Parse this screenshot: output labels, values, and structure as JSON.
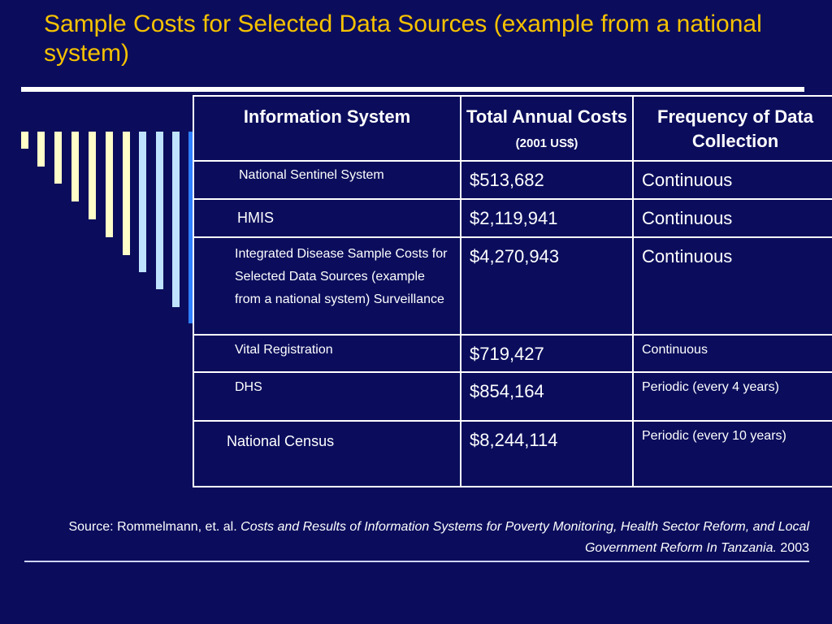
{
  "title": "Sample Costs for Selected Data Sources (example from a national system)",
  "table": {
    "headers": {
      "system": "Information System",
      "costs_main": "Total Annual Costs",
      "costs_unit": "(2001 US$)",
      "frequency": "Frequency of Data Collection"
    },
    "rows": [
      {
        "system": "National Sentinel System",
        "cost": "$513,682",
        "frequency": "Continuous"
      },
      {
        "system": "HMIS",
        "cost": "$2,119,941",
        "frequency": "Continuous"
      },
      {
        "system": "Integrated Disease Sample Costs for Selected Data Sources (example from a national system) Surveillance",
        "cost": "$4,270,943",
        "frequency": "Continuous"
      },
      {
        "system": "Vital Registration",
        "cost": "$719,427",
        "frequency": "Continuous"
      },
      {
        "system": "DHS",
        "cost": "$854,164",
        "frequency": "Periodic (every 4 years)"
      },
      {
        "system": "National Census",
        "cost": "$8,244,114",
        "frequency": "Periodic (every 10 years)"
      }
    ]
  },
  "source": {
    "prefix": "Source: Rommelmann, et. al.",
    "citation": "Costs and Results of Information Systems for Poverty Monitoring, Health Sector Reform, and Local Government Reform In Tanzania.",
    "year": "2003"
  },
  "colors": {
    "background": "#0b0d5c",
    "title": "#f6c200",
    "bar_cream": "#fffdc8",
    "bar_light_blue": "#bfe3ff",
    "bar_blue": "#2f7fff"
  }
}
